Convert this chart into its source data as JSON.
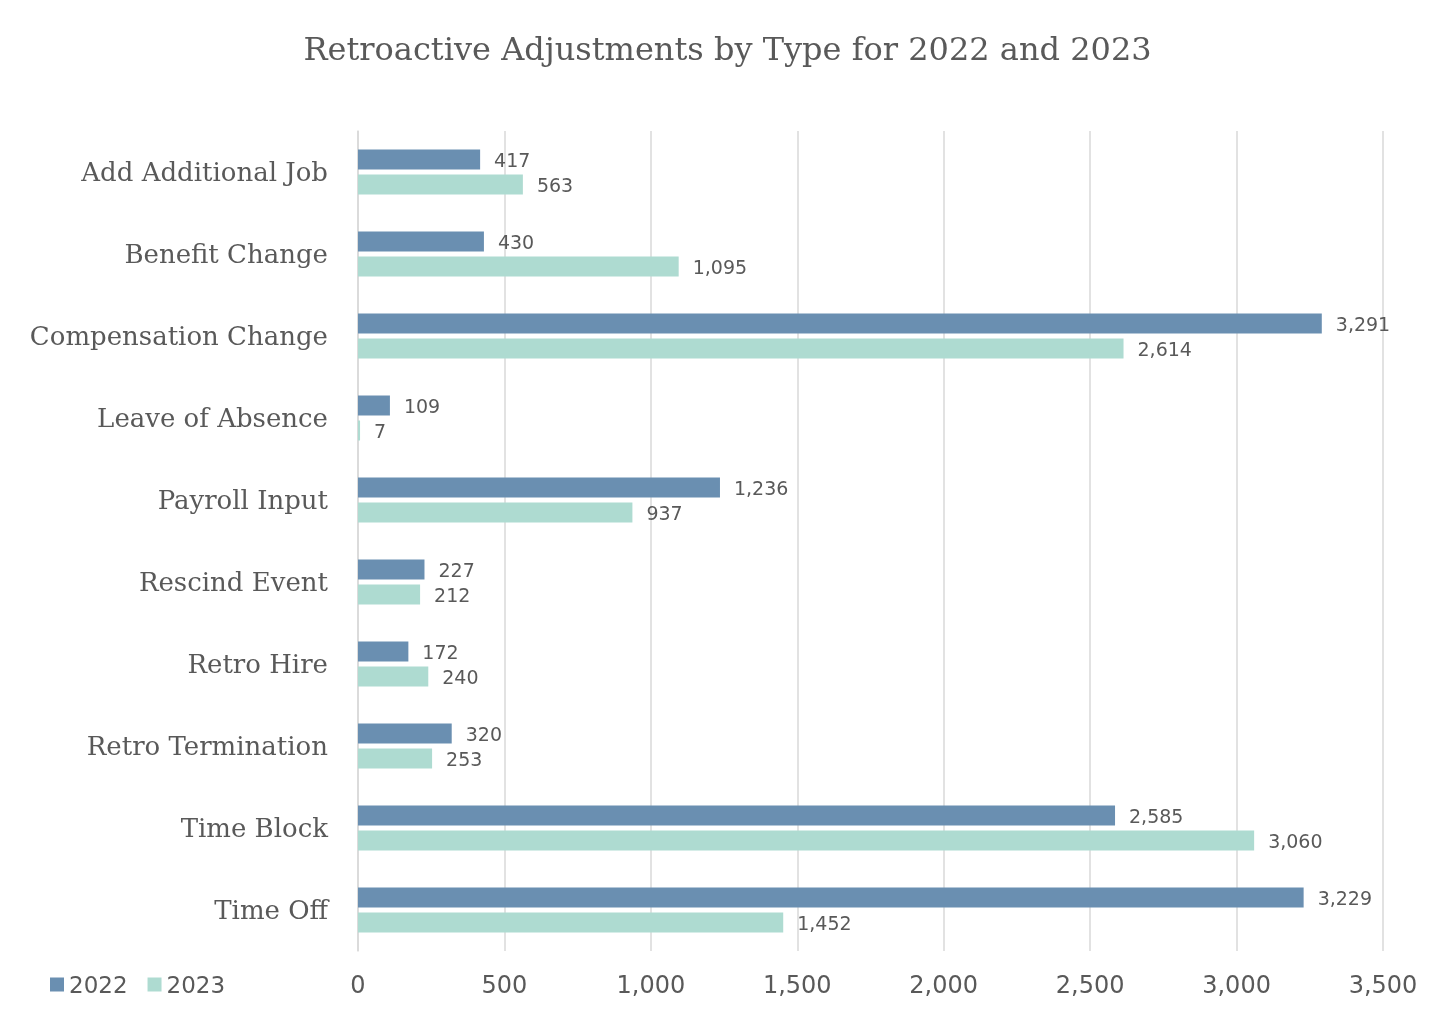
{
  "chart_data": {
    "type": "bar",
    "orientation": "horizontal",
    "title": "Retroactive Adjustments by Type for 2022 and 2023",
    "categories": [
      "Add Additional Job",
      "Benefit Change",
      "Compensation Change",
      "Leave of Absence",
      "Payroll Input",
      "Rescind Event",
      "Retro Hire",
      "Retro Termination",
      "Time Block",
      "Time Off"
    ],
    "series": [
      {
        "name": "2022",
        "color": "#6a8fb1",
        "values": [
          417,
          430,
          3291,
          109,
          1236,
          227,
          172,
          320,
          2585,
          3229
        ],
        "value_labels": [
          "417",
          "430",
          "3,291",
          "109",
          "1,236",
          "227",
          "172",
          "320",
          "2,585",
          "3,229"
        ]
      },
      {
        "name": "2023",
        "color": "#aedbd1",
        "values": [
          563,
          1095,
          2614,
          7,
          937,
          212,
          240,
          253,
          3060,
          1452
        ],
        "value_labels": [
          "563",
          "1,095",
          "2,614",
          "7",
          "937",
          "212",
          "240",
          "253",
          "3,060",
          "1,452"
        ]
      }
    ],
    "xlim": [
      0,
      3500
    ],
    "xticks": [
      0,
      500,
      {
        "value": 1000,
        "label": "1,000"
      },
      {
        "value": 1500,
        "label": "1,500"
      },
      {
        "value": 2000,
        "label": "2,000"
      },
      {
        "value": 2500,
        "label": "2,500"
      },
      {
        "value": 3000,
        "label": "3,000"
      },
      {
        "value": 3500,
        "label": "3,500"
      }
    ],
    "grid": "x",
    "legend": "bottom left"
  }
}
